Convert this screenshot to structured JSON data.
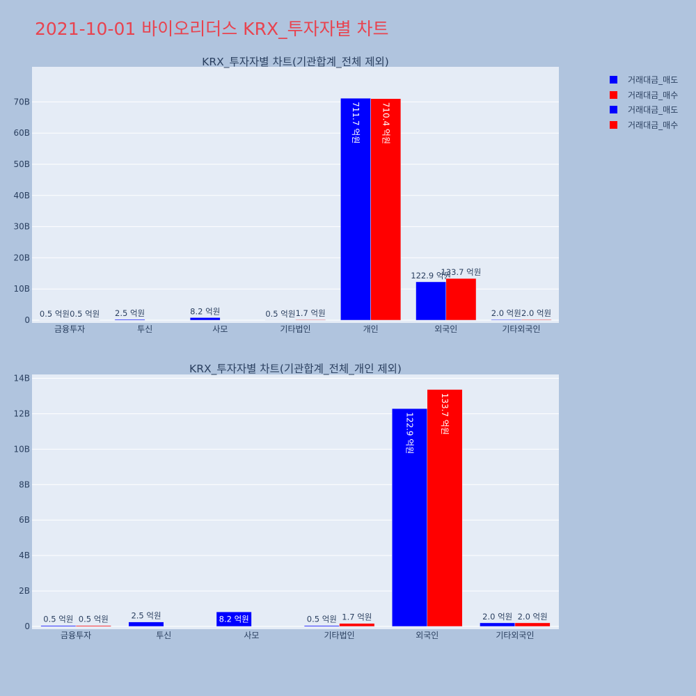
{
  "title": "2021-10-01 바이오리더스 KRX_투자자별 차트",
  "legend": [
    {
      "label": "거래대금_매도",
      "color": "#0000ff"
    },
    {
      "label": "거래대금_매수",
      "color": "#ff0000"
    },
    {
      "label": "거래대금_매도",
      "color": "#0000ff"
    },
    {
      "label": "거래대금_매수",
      "color": "#ff0000"
    }
  ],
  "chart_data": [
    {
      "type": "bar",
      "title": "KRX_투자자별 차트(기관합계_전체 제외)",
      "categories": [
        "금융투자",
        "투신",
        "사모",
        "기타법인",
        "개인",
        "외국인",
        "기타외국인"
      ],
      "series": [
        {
          "name": "거래대금_매도",
          "color": "#0000ff",
          "values": [
            0.05,
            0.25,
            0.82,
            0.05,
            71.17,
            12.29,
            0.2
          ],
          "labels": [
            "0.5 억원",
            "2.5 억원",
            "8.2 억원",
            "0.5 억원",
            "711.7 억원",
            "122.9 억원",
            "2.0 억원"
          ]
        },
        {
          "name": "거래대금_매수",
          "color": "#ff0000",
          "values": [
            0.05,
            0,
            0,
            0.17,
            71.04,
            13.37,
            0.2
          ],
          "labels": [
            "0.5 억원",
            "",
            "",
            "1.7 억원",
            "710.4 억원",
            "133.7 억원",
            "2.0 억원"
          ]
        }
      ],
      "yticks": [
        0,
        10,
        20,
        30,
        40,
        50,
        60,
        70
      ],
      "ytick_labels": [
        "0",
        "10B",
        "20B",
        "30B",
        "40B",
        "50B",
        "60B",
        "70B"
      ],
      "ylim": [
        0,
        75
      ],
      "unit": "B",
      "grid": true
    },
    {
      "type": "bar",
      "title": "KRX_투자자별 차트(기관합계_전체_개인 제외)",
      "categories": [
        "금융투자",
        "투신",
        "사모",
        "기타법인",
        "외국인",
        "기타외국인"
      ],
      "series": [
        {
          "name": "거래대금_매도",
          "color": "#0000ff",
          "values": [
            0.05,
            0.25,
            0.82,
            0.05,
            12.29,
            0.2
          ],
          "labels": [
            "0.5 억원",
            "2.5 억원",
            "8.2 억원",
            "0.5 억원",
            "122.9 억원",
            "2.0 억원"
          ]
        },
        {
          "name": "거래대금_매수",
          "color": "#ff0000",
          "values": [
            0.05,
            0,
            0,
            0.17,
            13.37,
            0.2
          ],
          "labels": [
            "0.5 억원",
            "",
            "",
            "1.7 억원",
            "133.7 억원",
            "2.0 억원"
          ]
        }
      ],
      "yticks": [
        0,
        2,
        4,
        6,
        8,
        10,
        12,
        14
      ],
      "ytick_labels": [
        "0",
        "2B",
        "4B",
        "6B",
        "8B",
        "10B",
        "12B",
        "14B"
      ],
      "ylim": [
        0,
        14.1
      ],
      "unit": "B",
      "grid": true
    }
  ]
}
